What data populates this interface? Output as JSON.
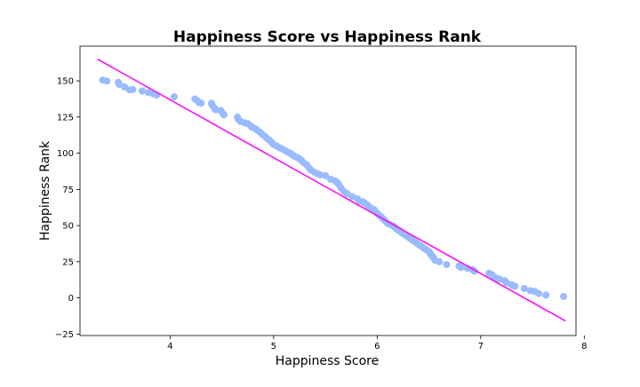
{
  "chart_data": {
    "type": "scatter",
    "title": "Happiness Score vs Happiness Rank",
    "xlabel": "Happiness Score",
    "ylabel": "Happiness Rank",
    "xlim": [
      3.13,
      7.92
    ],
    "ylim": [
      -26,
      174
    ],
    "xticks": [
      4,
      5,
      6,
      7,
      8
    ],
    "yticks": [
      -25,
      0,
      25,
      50,
      75,
      100,
      125,
      150
    ],
    "grid": false,
    "colors": {
      "points": "#99bbff",
      "line": "#ff00ff"
    },
    "points": [
      [
        3.35,
        150.5
      ],
      [
        3.39,
        149.8
      ],
      [
        3.5,
        149.0
      ],
      [
        3.51,
        147.5
      ],
      [
        3.56,
        145.8
      ],
      [
        3.61,
        143.8
      ],
      [
        3.64,
        144.0
      ],
      [
        3.73,
        143.0
      ],
      [
        3.79,
        142.0
      ],
      [
        3.84,
        141.0
      ],
      [
        3.87,
        140.2
      ],
      [
        4.04,
        139.0
      ],
      [
        4.24,
        137.5
      ],
      [
        4.26,
        136.5
      ],
      [
        4.28,
        135.0
      ],
      [
        4.3,
        134.7
      ],
      [
        4.4,
        134.5
      ],
      [
        4.41,
        133.0
      ],
      [
        4.43,
        131.0
      ],
      [
        4.44,
        130.0
      ],
      [
        4.49,
        129.5
      ],
      [
        4.51,
        127.5
      ],
      [
        4.52,
        126.5
      ],
      [
        4.65,
        125.0
      ],
      [
        4.66,
        123.5
      ],
      [
        4.68,
        122.0
      ],
      [
        4.72,
        121.0
      ],
      [
        4.75,
        120.5
      ],
      [
        4.78,
        119.0
      ],
      [
        4.79,
        118.0
      ],
      [
        4.82,
        117.0
      ],
      [
        4.84,
        116.0
      ],
      [
        4.87,
        114.5
      ],
      [
        4.89,
        113.0
      ],
      [
        4.92,
        111.5
      ],
      [
        4.94,
        110.0
      ],
      [
        4.96,
        109.0
      ],
      [
        4.98,
        107.5
      ],
      [
        5.0,
        106.0
      ],
      [
        5.03,
        105.0
      ],
      [
        5.05,
        104.0
      ],
      [
        5.08,
        103.0
      ],
      [
        5.11,
        102.0
      ],
      [
        5.13,
        101.0
      ],
      [
        5.16,
        100.0
      ],
      [
        5.18,
        99.0
      ],
      [
        5.2,
        98.0
      ],
      [
        5.23,
        97.0
      ],
      [
        5.25,
        96.0
      ],
      [
        5.27,
        95.0
      ],
      [
        5.29,
        93.5
      ],
      [
        5.32,
        92.0
      ],
      [
        5.34,
        90.0
      ],
      [
        5.36,
        88.5
      ],
      [
        5.39,
        87.0
      ],
      [
        5.42,
        86.0
      ],
      [
        5.45,
        85.0
      ],
      [
        5.5,
        84.5
      ],
      [
        5.55,
        82.0
      ],
      [
        5.59,
        81.0
      ],
      [
        5.61,
        80.0
      ],
      [
        5.63,
        78.5
      ],
      [
        5.65,
        76.0
      ],
      [
        5.68,
        73.5
      ],
      [
        5.71,
        72.0
      ],
      [
        5.76,
        70.0
      ],
      [
        5.81,
        68.5
      ],
      [
        5.83,
        67.0
      ],
      [
        5.86,
        66.5
      ],
      [
        5.88,
        65.5
      ],
      [
        5.91,
        64.0
      ],
      [
        5.94,
        62.0
      ],
      [
        5.97,
        61.0
      ],
      [
        5.98,
        60.0
      ],
      [
        6.0,
        58.5
      ],
      [
        6.02,
        57.0
      ],
      [
        6.04,
        56.0
      ],
      [
        6.06,
        54.5
      ],
      [
        6.08,
        53.0
      ],
      [
        6.1,
        51.5
      ],
      [
        6.13,
        50.5
      ],
      [
        6.16,
        49.5
      ],
      [
        6.18,
        48.0
      ],
      [
        6.2,
        47.0
      ],
      [
        6.22,
        46.0
      ],
      [
        6.24,
        45.0
      ],
      [
        6.26,
        44.0
      ],
      [
        6.28,
        43.0
      ],
      [
        6.3,
        42.0
      ],
      [
        6.32,
        41.0
      ],
      [
        6.34,
        40.0
      ],
      [
        6.36,
        39.0
      ],
      [
        6.38,
        38.0
      ],
      [
        6.4,
        37.0
      ],
      [
        6.42,
        36.0
      ],
      [
        6.44,
        35.0
      ],
      [
        6.46,
        34.0
      ],
      [
        6.48,
        33.0
      ],
      [
        6.5,
        32.0
      ],
      [
        6.51,
        31.0
      ],
      [
        6.52,
        30.0
      ],
      [
        6.53,
        29.0
      ],
      [
        6.54,
        28.0
      ],
      [
        6.55,
        27.0
      ],
      [
        6.56,
        26.0
      ],
      [
        6.6,
        25.0
      ],
      [
        6.67,
        23.0
      ],
      [
        6.79,
        22.0
      ],
      [
        6.81,
        21.0
      ],
      [
        6.87,
        20.5
      ],
      [
        6.92,
        19.5
      ],
      [
        6.94,
        18.5
      ],
      [
        7.08,
        17.0
      ],
      [
        7.11,
        16.0
      ],
      [
        7.12,
        15.0
      ],
      [
        7.14,
        14.0
      ],
      [
        7.18,
        13.0
      ],
      [
        7.23,
        12.0
      ],
      [
        7.25,
        10.5
      ],
      [
        7.3,
        9.0
      ],
      [
        7.33,
        8.0
      ],
      [
        7.42,
        6.5
      ],
      [
        7.48,
        5.0
      ],
      [
        7.52,
        4.5
      ],
      [
        7.56,
        3.0
      ],
      [
        7.63,
        2.0
      ],
      [
        7.8,
        1.0
      ]
    ],
    "trend_line": {
      "x": [
        3.3,
        7.82
      ],
      "y": [
        165,
        -16
      ]
    }
  }
}
